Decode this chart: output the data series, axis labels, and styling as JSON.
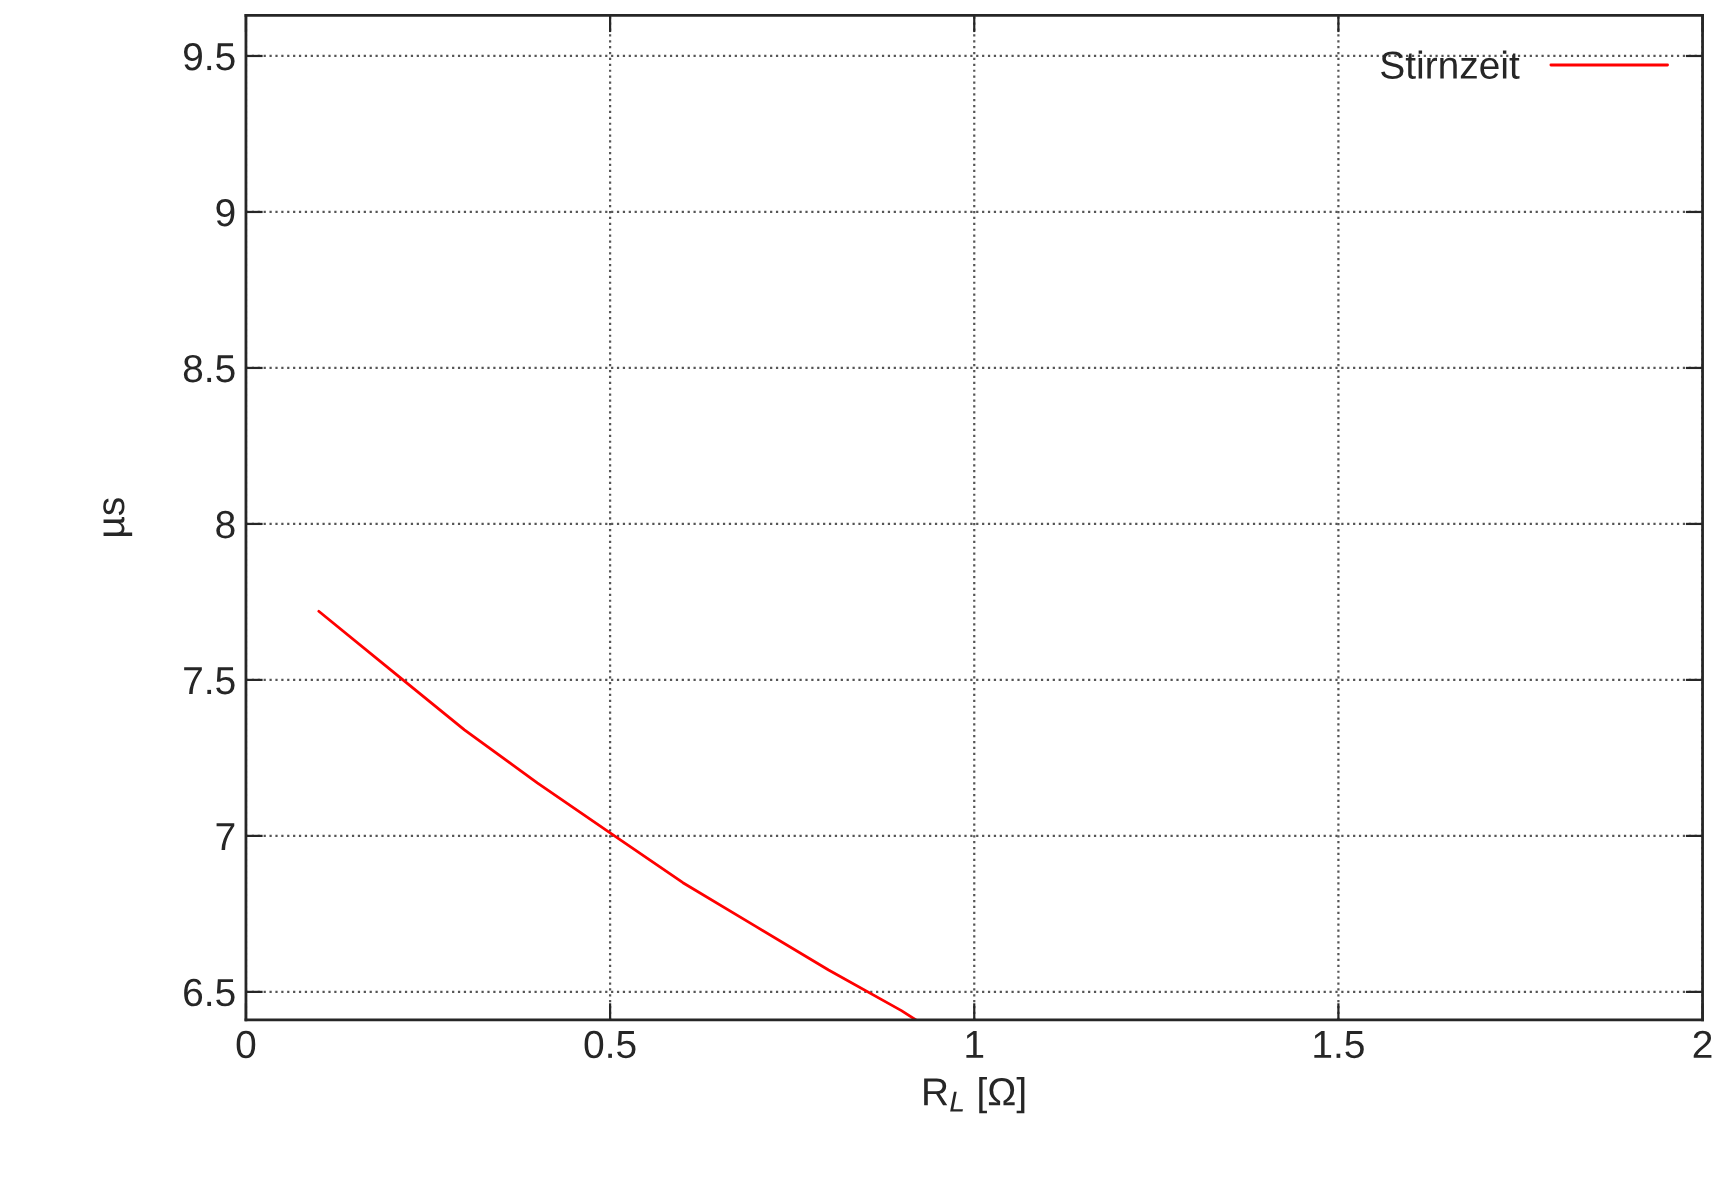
{
  "chart_data": {
    "type": "line",
    "xlabel": "R$_{L}$ [Ω]",
    "ylabel": "µs",
    "x": [
      0.1,
      0.2,
      0.3,
      0.4,
      0.5,
      0.6,
      0.7,
      0.8,
      0.9,
      0.92
    ],
    "series": [
      {
        "name": "Stirnzeit",
        "color": "#ff0000",
        "values": [
          7.72,
          7.53,
          7.34,
          7.17,
          7.01,
          6.85,
          6.71,
          6.57,
          6.44,
          6.41
        ]
      }
    ],
    "xlim": [
      0,
      2
    ],
    "xticks": [
      0,
      0.5,
      1,
      1.5,
      2
    ],
    "ylim": [
      6.41,
      9.63
    ],
    "yticks": [
      6.5,
      7,
      7.5,
      8,
      8.5,
      9,
      9.5
    ],
    "grid": true,
    "legend": "top right",
    "line_style": "solid",
    "marker": "none"
  }
}
